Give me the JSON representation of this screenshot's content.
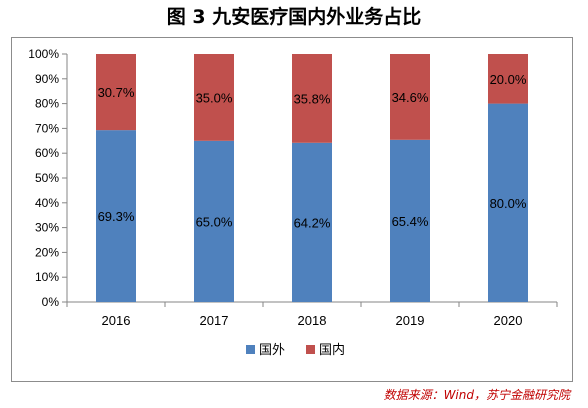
{
  "title": "图 3  九安医疗国内外业务占比",
  "source": "数据来源：Wind，苏宁金融研究院",
  "chart_data": {
    "type": "bar",
    "stacked": true,
    "categories": [
      "2016",
      "2017",
      "2018",
      "2019",
      "2020"
    ],
    "series": [
      {
        "name": "国外",
        "color": "#4f81bd",
        "values": [
          69.3,
          65.0,
          64.2,
          65.4,
          80.0
        ],
        "labels": [
          "69.3%",
          "65.0%",
          "64.2%",
          "65.4%",
          "80.0%"
        ]
      },
      {
        "name": "国内",
        "color": "#c0504d",
        "values": [
          30.7,
          35.0,
          35.8,
          34.6,
          20.0
        ],
        "labels": [
          "30.7%",
          "35.0%",
          "35.8%",
          "34.6%",
          "20.0%"
        ]
      }
    ],
    "yticks": [
      "0%",
      "10%",
      "20%",
      "30%",
      "40%",
      "50%",
      "60%",
      "70%",
      "80%",
      "90%",
      "100%"
    ],
    "ylim": [
      0,
      100
    ],
    "grid": false,
    "legend_position": "bottom"
  }
}
